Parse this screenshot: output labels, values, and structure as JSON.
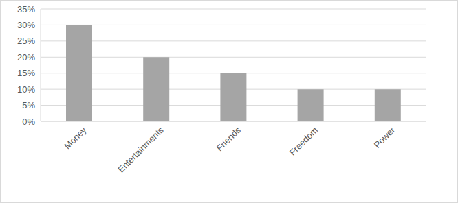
{
  "chart_data": {
    "type": "bar",
    "categories": [
      "Money",
      "Entertainments",
      "Friends",
      "Freedom",
      "Power"
    ],
    "values": [
      30,
      20,
      15,
      10,
      10
    ],
    "color": "#a5a5a5",
    "ylim": [
      0,
      35
    ],
    "yticks": [
      {
        "value": 0,
        "label": "0%"
      },
      {
        "value": 5,
        "label": "5%"
      },
      {
        "value": 10,
        "label": "10%"
      },
      {
        "value": 15,
        "label": "15%"
      },
      {
        "value": 20,
        "label": "20%"
      },
      {
        "value": 25,
        "label": "25%"
      },
      {
        "value": 30,
        "label": "30%"
      },
      {
        "value": 35,
        "label": "35%"
      }
    ],
    "grid": true
  }
}
